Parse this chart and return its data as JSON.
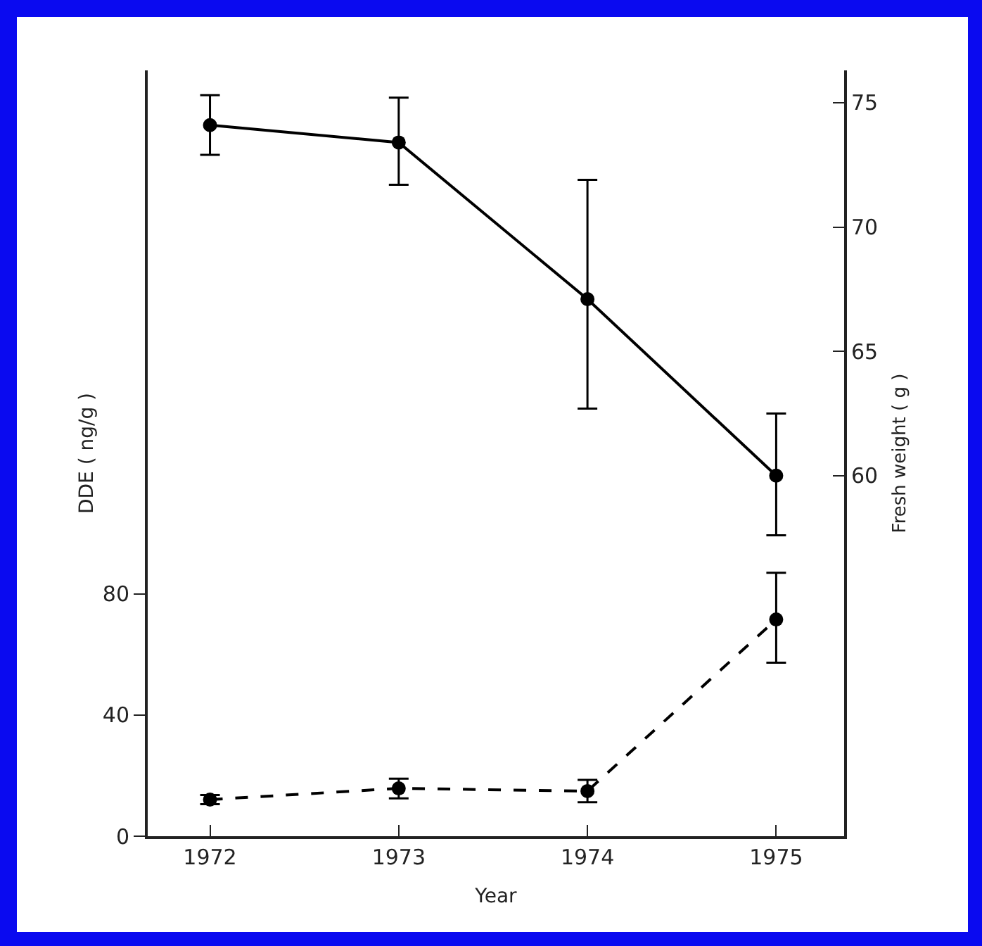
{
  "chart_data": {
    "type": "line",
    "xlabel": "Year",
    "ylabel": "DDE ( ng/g )",
    "y2label": "Fresh weight ( g )",
    "x": [
      1972,
      1973,
      1974,
      1975
    ],
    "series": [
      {
        "color": "#000000",
        "axis": "y2",
        "line_style": "solid",
        "values": [
          74.1,
          73.4,
          67.1,
          60.0
        ],
        "errors": [
          [
            72.9,
            75.3
          ],
          [
            71.7,
            75.2
          ],
          [
            62.7,
            71.9
          ],
          [
            57.6,
            62.5
          ]
        ]
      },
      {
        "color": "#000000",
        "axis": "y",
        "line_style": "dashed",
        "values": [
          12.1,
          15.8,
          14.9,
          71.6
        ],
        "errors": [
          [
            10.6,
            13.6
          ],
          [
            12.5,
            19.0
          ],
          [
            11.2,
            18.6
          ],
          [
            57.3,
            87.0
          ]
        ]
      }
    ],
    "xlim": [
      1971.67,
      1975.36
    ],
    "xticks": [
      1972,
      1973,
      1974,
      1975
    ],
    "ylim": [
      0,
      253
    ],
    "yticks": [
      0,
      40,
      80
    ],
    "y2lim": [
      45.5,
      76.3
    ],
    "y2ticks": [
      60,
      65,
      70,
      75
    ],
    "marker": "circle"
  }
}
